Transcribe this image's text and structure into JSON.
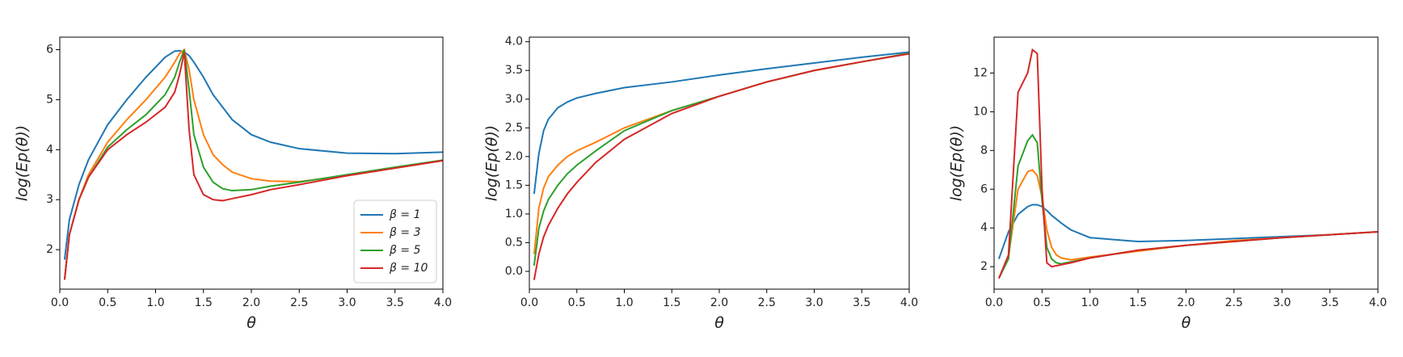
{
  "chart_data": [
    {
      "type": "line",
      "y_label": "log(Ep(θ))",
      "x_label": "θ",
      "xlim": [
        0,
        4
      ],
      "ylim": [
        1.21,
        6.25
      ],
      "xticks": [
        {
          "value": 0,
          "label": "0.0"
        },
        0.5,
        {
          "value": 1,
          "label": "1.0"
        },
        1.5,
        {
          "value": 2,
          "label": "2.0"
        },
        2.5,
        {
          "value": 3,
          "label": "3.0"
        },
        3.5,
        {
          "value": 4,
          "label": "4.0"
        }
      ],
      "yticks": [
        2,
        3,
        4,
        5,
        6
      ],
      "legend": "lower right",
      "x": [
        0.05,
        0.1,
        0.2,
        0.3,
        0.5,
        0.7,
        0.9,
        1.1,
        1.2,
        1.25,
        1.3,
        1.35,
        1.4,
        1.5,
        1.6,
        1.7,
        1.8,
        2.0,
        2.2,
        2.5,
        3.0,
        3.5,
        4.0
      ],
      "series": [
        {
          "name": "β = 1",
          "color": "#1f77b4",
          "values": [
            1.8,
            2.6,
            3.3,
            3.8,
            4.5,
            5.0,
            5.45,
            5.85,
            5.97,
            5.98,
            5.95,
            5.88,
            5.75,
            5.45,
            5.1,
            4.85,
            4.6,
            4.3,
            4.15,
            4.02,
            3.93,
            3.92,
            3.95
          ]
        },
        {
          "name": "β = 3",
          "color": "#ff7f0e",
          "values": [
            1.4,
            2.3,
            3.0,
            3.5,
            4.15,
            4.6,
            5.0,
            5.45,
            5.75,
            5.92,
            6.0,
            5.6,
            5.0,
            4.3,
            3.9,
            3.7,
            3.55,
            3.42,
            3.37,
            3.36,
            3.48,
            3.63,
            3.78
          ]
        },
        {
          "name": "β = 5",
          "color": "#2ca02c",
          "values": [
            1.4,
            2.3,
            3.0,
            3.45,
            4.05,
            4.4,
            4.7,
            5.1,
            5.45,
            5.75,
            6.0,
            5.2,
            4.3,
            3.65,
            3.35,
            3.22,
            3.18,
            3.2,
            3.27,
            3.35,
            3.5,
            3.65,
            3.79
          ]
        },
        {
          "name": "β = 10",
          "color": "#d62728",
          "values": [
            1.4,
            2.3,
            3.0,
            3.45,
            4.0,
            4.3,
            4.55,
            4.85,
            5.15,
            5.5,
            5.95,
            4.4,
            3.5,
            3.1,
            3.0,
            2.98,
            3.02,
            3.1,
            3.2,
            3.3,
            3.48,
            3.63,
            3.78
          ]
        }
      ]
    },
    {
      "type": "line",
      "y_label": "log(Ep(θ))",
      "x_label": "θ",
      "xlim": [
        0,
        4
      ],
      "ylim": [
        -0.31,
        4.08
      ],
      "xticks": [
        {
          "value": 0,
          "label": "0.0"
        },
        0.5,
        {
          "value": 1,
          "label": "1.0"
        },
        1.5,
        {
          "value": 2,
          "label": "2.0"
        },
        2.5,
        {
          "value": 3,
          "label": "3.0"
        },
        3.5,
        {
          "value": 4,
          "label": "4.0"
        }
      ],
      "yticks": [
        {
          "value": 0,
          "label": "0.0"
        },
        0.5,
        {
          "value": 1,
          "label": "1.0"
        },
        1.5,
        {
          "value": 2,
          "label": "2.0"
        },
        2.5,
        {
          "value": 3,
          "label": "3.0"
        },
        3.5,
        {
          "value": 4,
          "label": "4.0"
        }
      ],
      "x": [
        0.05,
        0.1,
        0.15,
        0.2,
        0.3,
        0.4,
        0.5,
        0.7,
        1.0,
        1.5,
        2.0,
        2.5,
        3.0,
        3.5,
        4.0
      ],
      "series": [
        {
          "color": "#1f77b4",
          "values": [
            1.35,
            2.05,
            2.45,
            2.65,
            2.85,
            2.95,
            3.02,
            3.1,
            3.2,
            3.3,
            3.42,
            3.53,
            3.63,
            3.73,
            3.82
          ]
        },
        {
          "color": "#ff7f0e",
          "values": [
            0.3,
            1.1,
            1.45,
            1.65,
            1.85,
            2.0,
            2.1,
            2.25,
            2.5,
            2.8,
            3.05,
            3.3,
            3.5,
            3.65,
            3.8
          ]
        },
        {
          "color": "#2ca02c",
          "values": [
            0.1,
            0.75,
            1.05,
            1.25,
            1.5,
            1.7,
            1.85,
            2.1,
            2.45,
            2.8,
            3.05,
            3.3,
            3.5,
            3.65,
            3.8
          ]
        },
        {
          "color": "#d62728",
          "values": [
            -0.15,
            0.3,
            0.6,
            0.8,
            1.1,
            1.35,
            1.55,
            1.9,
            2.3,
            2.75,
            3.05,
            3.3,
            3.5,
            3.65,
            3.79
          ]
        }
      ]
    },
    {
      "type": "line",
      "y_label": "log(Ep(θ))",
      "x_label": "θ",
      "xlim": [
        0,
        4
      ],
      "ylim": [
        0.84,
        13.85
      ],
      "xticks": [
        {
          "value": 0,
          "label": "0.0"
        },
        0.5,
        {
          "value": 1,
          "label": "1.0"
        },
        1.5,
        {
          "value": 2,
          "label": "2.0"
        },
        2.5,
        {
          "value": 3,
          "label": "3.0"
        },
        3.5,
        {
          "value": 4,
          "label": "4.0"
        }
      ],
      "yticks": [
        2,
        4,
        6,
        8,
        10,
        12
      ],
      "x": [
        0.05,
        0.15,
        0.25,
        0.35,
        0.4,
        0.45,
        0.5,
        0.55,
        0.6,
        0.65,
        0.7,
        0.8,
        1.0,
        1.5,
        2.0,
        2.5,
        3.0,
        3.5,
        4.0
      ],
      "series": [
        {
          "color": "#1f77b4",
          "values": [
            2.4,
            3.8,
            4.7,
            5.1,
            5.2,
            5.2,
            5.1,
            4.9,
            4.65,
            4.45,
            4.25,
            3.9,
            3.5,
            3.3,
            3.35,
            3.45,
            3.55,
            3.65,
            3.8
          ]
        },
        {
          "color": "#ff7f0e",
          "values": [
            1.4,
            2.5,
            6.0,
            6.9,
            7.0,
            6.7,
            5.6,
            3.9,
            3.0,
            2.6,
            2.45,
            2.35,
            2.5,
            2.8,
            3.1,
            3.35,
            3.5,
            3.65,
            3.8
          ]
        },
        {
          "color": "#2ca02c",
          "values": [
            1.4,
            2.4,
            7.2,
            8.5,
            8.8,
            8.4,
            5.4,
            3.0,
            2.4,
            2.2,
            2.15,
            2.25,
            2.45,
            2.85,
            3.1,
            3.3,
            3.5,
            3.65,
            3.8
          ]
        },
        {
          "color": "#d62728",
          "values": [
            1.4,
            2.6,
            11.0,
            12.0,
            13.2,
            13.0,
            6.0,
            2.2,
            2.0,
            2.05,
            2.1,
            2.2,
            2.45,
            2.85,
            3.1,
            3.3,
            3.5,
            3.65,
            3.8
          ]
        }
      ]
    }
  ]
}
